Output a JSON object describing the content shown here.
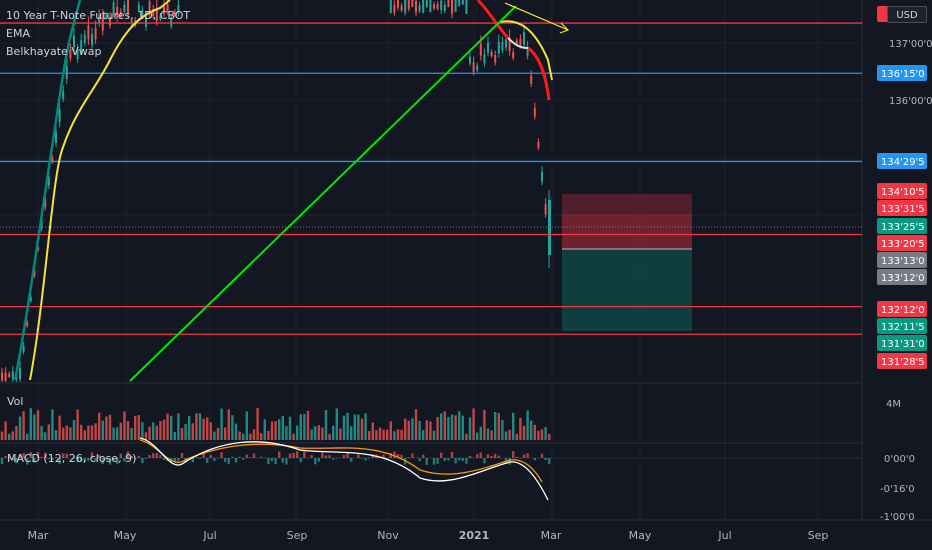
{
  "legend": {
    "title": "10 Year T-Note Futures, 1D, CBOT",
    "ema": "EMA",
    "vwap": "Belkhayate Vwap"
  },
  "currency_button": "USD",
  "price_axis": {
    "ticks": [
      {
        "label": "137'00'0",
        "price": 137.0
      },
      {
        "label": "136'00'0",
        "price": 136.0
      }
    ],
    "tags": [
      {
        "label": "136'15'0",
        "price": 136.469,
        "color": "#2196f3"
      },
      {
        "label": "134'29'5",
        "price": 134.922,
        "color": "#2196f3"
      },
      {
        "label": "134'10'5",
        "price": 134.328,
        "color": "#f23645"
      },
      {
        "label": "133'31'5",
        "price": 133.984,
        "color": "#f23645"
      },
      {
        "label": "133'25'5",
        "price": 133.797,
        "color": "#089981"
      },
      {
        "label": "133'20'5",
        "price": 133.641,
        "color": "#f23645"
      },
      {
        "label": "133'13'0",
        "price": 133.406,
        "color": "#787b86"
      },
      {
        "label": "133'12'0",
        "price": 133.375,
        "color": "#787b86"
      },
      {
        "label": "132'12'0",
        "price": 132.375,
        "color": "#f23645"
      },
      {
        "label": "132'11'5",
        "price": 132.359,
        "color": "#089981"
      },
      {
        "label": "131'31'0",
        "price": 131.969,
        "color": "#089981"
      },
      {
        "label": "131'28'5",
        "price": 131.891,
        "color": "#f23645"
      }
    ]
  },
  "volume_axis": {
    "label": "4M"
  },
  "macd_axis": {
    "ticks": [
      "0'00'0",
      "-0'16'0",
      "-1'00'0"
    ]
  },
  "macd_label": "MACD (12, 26, close, 9)",
  "volume_label": "Vol",
  "time_axis": [
    "Mar",
    "May",
    "Jul",
    "Sep",
    "Nov",
    "2021",
    "Mar",
    "May",
    "Jul",
    "Sep"
  ],
  "drawings": {
    "horizontal_lines": [
      {
        "price": 137.35,
        "color": "#f23645"
      },
      {
        "price": 136.469,
        "color": "#2196f3"
      },
      {
        "price": 134.922,
        "color": "#2196f3"
      },
      {
        "price": 133.641,
        "color": "#f23645"
      },
      {
        "price": 132.375,
        "color": "#f23645"
      },
      {
        "price": 131.891,
        "color": "#f23645"
      }
    ],
    "colors": {
      "trendline": "#00e600",
      "ema": "#f5e337",
      "vwap_fast": "#00897b",
      "vwap_red": "#ff0000",
      "arrow": "#f5e337",
      "up_candle": "#26a69a",
      "down_candle": "#ef5350"
    }
  }
}
